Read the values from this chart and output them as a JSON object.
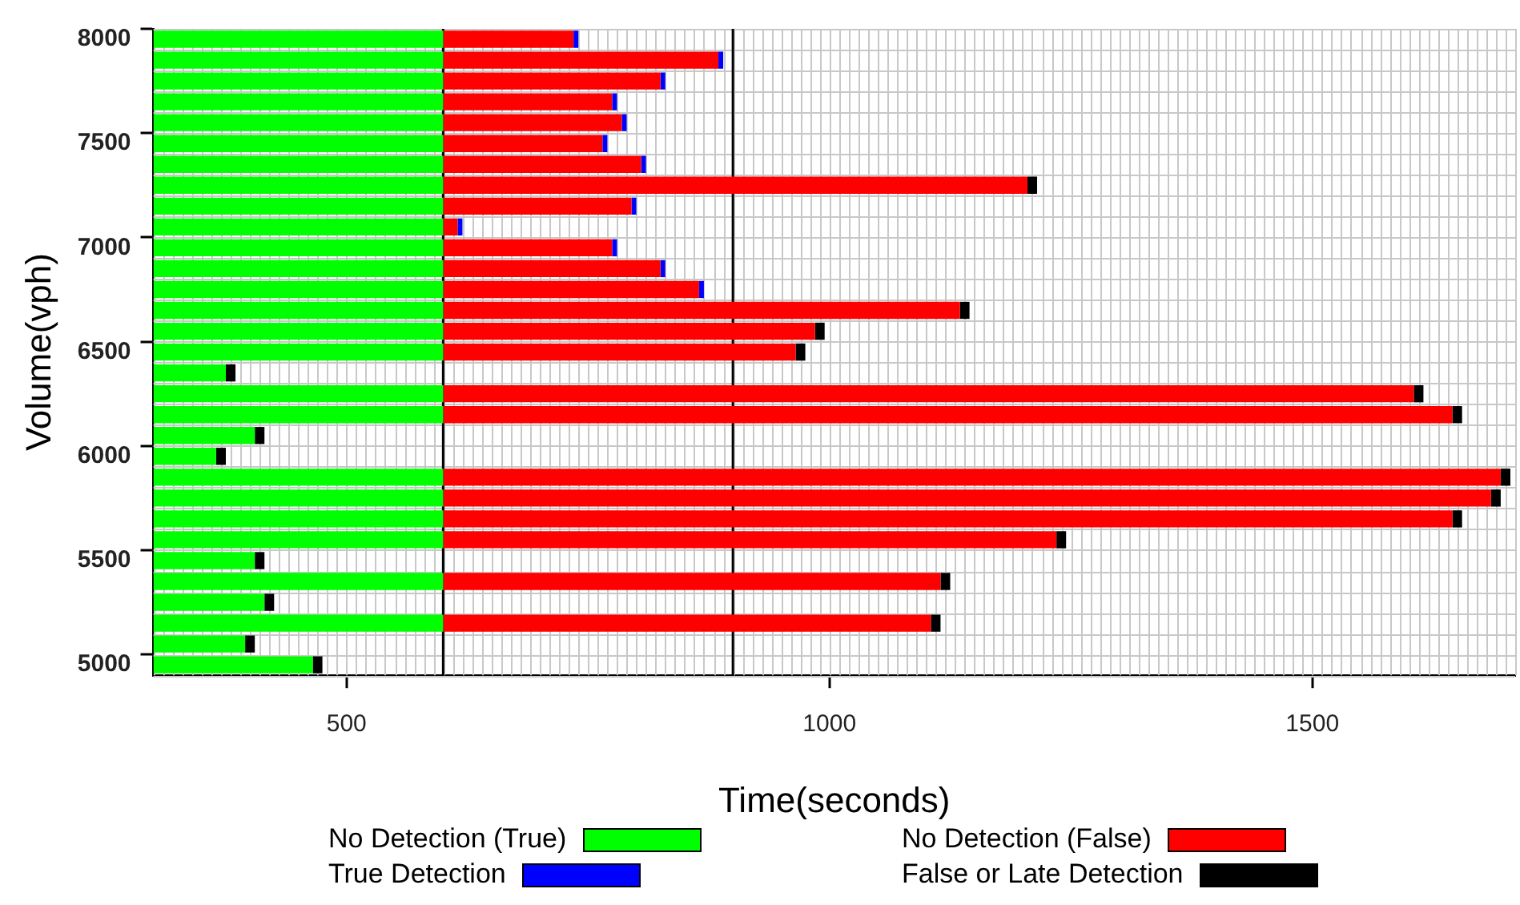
{
  "chart_data": {
    "type": "bar",
    "orientation": "horizontal",
    "xlabel": "Time(seconds)",
    "ylabel": "Volume(vph)",
    "categories": [
      "8000",
      null,
      null,
      null,
      null,
      "7500",
      null,
      null,
      null,
      null,
      "7000",
      null,
      null,
      null,
      null,
      "6500",
      null,
      null,
      null,
      null,
      "6000",
      null,
      null,
      null,
      null,
      "5500",
      null,
      null,
      null,
      null,
      "5000"
    ],
    "series": [
      {
        "name": "No Detection (True)",
        "color": "#00ff00",
        "base": [
          300,
          300,
          300,
          300,
          300,
          300,
          300,
          300,
          300,
          300,
          300,
          300,
          300,
          300,
          300,
          300,
          300,
          300,
          300,
          300,
          300,
          300,
          300,
          300,
          300,
          300,
          300,
          300,
          300,
          300,
          300
        ],
        "values": [
          300,
          300,
          300,
          300,
          300,
          300,
          300,
          300,
          300,
          300,
          300,
          300,
          300,
          300,
          300,
          300,
          75,
          300,
          300,
          105,
          65,
          300,
          300,
          300,
          300,
          105,
          300,
          115,
          300,
          95,
          165
        ]
      },
      {
        "name": "No Detection (False)",
        "color": "#ff0000",
        "base": [
          600,
          600,
          600,
          600,
          600,
          600,
          600,
          600,
          600,
          600,
          600,
          600,
          600,
          600,
          600,
          600,
          null,
          600,
          600,
          null,
          null,
          600,
          600,
          600,
          600,
          null,
          600,
          null,
          600,
          null,
          null
        ],
        "values": [
          135,
          285,
          225,
          175,
          185,
          165,
          205,
          605,
          195,
          15,
          175,
          225,
          265,
          535,
          385,
          365,
          null,
          1005,
          1045,
          null,
          null,
          1095,
          1085,
          1045,
          635,
          null,
          515,
          null,
          505,
          null,
          null
        ]
      },
      {
        "name": "True Detection",
        "color": "#0000ff",
        "base": [
          735,
          885,
          825,
          775,
          785,
          765,
          805,
          null,
          795,
          615,
          775,
          825,
          865,
          null,
          null,
          null,
          null,
          null,
          null,
          null,
          null,
          null,
          null,
          null,
          null,
          null,
          null,
          null,
          null,
          null,
          null
        ],
        "values": [
          5,
          5,
          5,
          5,
          5,
          5,
          5,
          null,
          5,
          5,
          5,
          5,
          5,
          null,
          null,
          null,
          null,
          null,
          null,
          null,
          null,
          null,
          null,
          null,
          null,
          null,
          null,
          null,
          null,
          null,
          null
        ]
      },
      {
        "name": "False or Late Detection",
        "color": "#000000",
        "base": [
          null,
          null,
          null,
          null,
          null,
          null,
          null,
          1205,
          null,
          null,
          null,
          null,
          null,
          1135,
          985,
          965,
          375,
          1605,
          1645,
          405,
          365,
          1695,
          1685,
          1645,
          1235,
          405,
          1115,
          415,
          1105,
          395,
          465
        ],
        "values": [
          null,
          null,
          null,
          null,
          null,
          null,
          null,
          10,
          null,
          null,
          null,
          null,
          null,
          10,
          10,
          10,
          10,
          10,
          10,
          10,
          10,
          10,
          10,
          10,
          10,
          10,
          10,
          10,
          10,
          10,
          10
        ]
      }
    ],
    "xlim": [
      300,
      1710
    ],
    "xticks": [
      500,
      1000,
      1500
    ],
    "grid": true,
    "legend": "bottom",
    "ref_lines": [
      {
        "axis": "x",
        "value": 600,
        "color": "#000000"
      },
      {
        "axis": "x",
        "value": 900,
        "color": "#000000"
      }
    ]
  }
}
